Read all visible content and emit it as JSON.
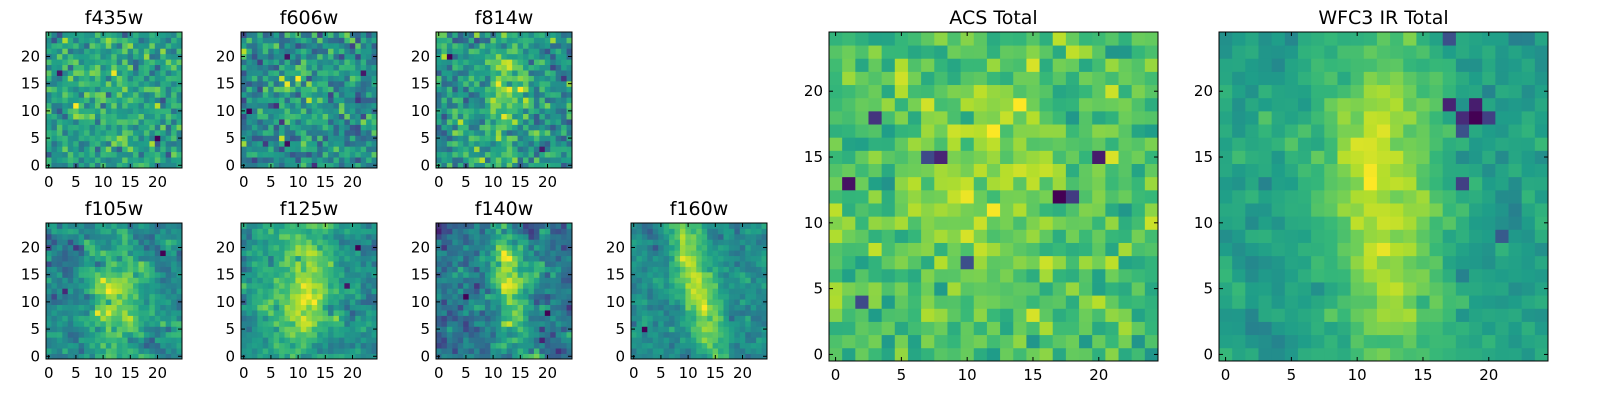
{
  "figure": {
    "colormap": "viridis",
    "colors": {
      "viridis_stops": [
        "#440154",
        "#482878",
        "#3e4a89",
        "#31688e",
        "#26828e",
        "#1f9e89",
        "#35b779",
        "#6ece58",
        "#b5de2b",
        "#fde725"
      ],
      "axis": "#000000",
      "background": "#ffffff"
    }
  },
  "chart_data": [
    {
      "type": "heatmap",
      "title": "f435w",
      "grid": false,
      "xlim": [
        -0.5,
        24.5
      ],
      "ylim": [
        -0.5,
        24.5
      ],
      "xticks": [
        0,
        5,
        10,
        15,
        20
      ],
      "yticks": [
        0,
        5,
        10,
        15,
        20
      ],
      "z_shape": [
        25,
        25
      ],
      "z": []
    },
    {
      "type": "heatmap",
      "title": "f606w",
      "grid": false,
      "xlim": [
        -0.5,
        24.5
      ],
      "ylim": [
        -0.5,
        24.5
      ],
      "xticks": [
        0,
        5,
        10,
        15,
        20
      ],
      "yticks": [
        0,
        5,
        10,
        15,
        20
      ],
      "z_shape": [
        25,
        25
      ],
      "z": []
    },
    {
      "type": "heatmap",
      "title": "f814w",
      "grid": false,
      "xlim": [
        -0.5,
        24.5
      ],
      "ylim": [
        -0.5,
        24.5
      ],
      "xticks": [
        0,
        5,
        10,
        15,
        20
      ],
      "yticks": [
        0,
        5,
        10,
        15,
        20
      ],
      "z_shape": [
        25,
        25
      ],
      "z": []
    },
    {
      "type": "heatmap",
      "title": "f105w",
      "grid": false,
      "xlim": [
        -0.5,
        24.5
      ],
      "ylim": [
        -0.5,
        24.5
      ],
      "xticks": [
        0,
        5,
        10,
        15,
        20
      ],
      "yticks": [
        0,
        5,
        10,
        15,
        20
      ],
      "z_shape": [
        25,
        25
      ],
      "z": []
    },
    {
      "type": "heatmap",
      "title": "f125w",
      "grid": false,
      "xlim": [
        -0.5,
        24.5
      ],
      "ylim": [
        -0.5,
        24.5
      ],
      "xticks": [
        0,
        5,
        10,
        15,
        20
      ],
      "yticks": [
        0,
        5,
        10,
        15,
        20
      ],
      "z_shape": [
        25,
        25
      ],
      "z": []
    },
    {
      "type": "heatmap",
      "title": "f140w",
      "grid": false,
      "xlim": [
        -0.5,
        24.5
      ],
      "ylim": [
        -0.5,
        24.5
      ],
      "xticks": [
        0,
        5,
        10,
        15,
        20
      ],
      "yticks": [
        0,
        5,
        10,
        15,
        20
      ],
      "z_shape": [
        25,
        25
      ],
      "z": []
    },
    {
      "type": "heatmap",
      "title": "f160w",
      "grid": false,
      "xlim": [
        -0.5,
        24.5
      ],
      "ylim": [
        -0.5,
        24.5
      ],
      "xticks": [
        0,
        5,
        10,
        15,
        20
      ],
      "yticks": [
        0,
        5,
        10,
        15,
        20
      ],
      "z_shape": [
        25,
        25
      ],
      "z": []
    },
    {
      "type": "heatmap",
      "title": "ACS Total",
      "grid": false,
      "xlim": [
        -0.5,
        24.5
      ],
      "ylim": [
        -0.5,
        24.5
      ],
      "xticks": [
        0,
        5,
        10,
        15,
        20
      ],
      "yticks": [
        0,
        5,
        10,
        15,
        20
      ],
      "z_shape": [
        25,
        25
      ],
      "z": []
    },
    {
      "type": "heatmap",
      "title": "WFC3 IR Total",
      "grid": false,
      "xlim": [
        -0.5,
        24.5
      ],
      "ylim": [
        -0.5,
        24.5
      ],
      "xticks": [
        0,
        5,
        10,
        15,
        20
      ],
      "yticks": [
        0,
        5,
        10,
        15,
        20
      ],
      "z_shape": [
        25,
        25
      ],
      "z": []
    }
  ]
}
